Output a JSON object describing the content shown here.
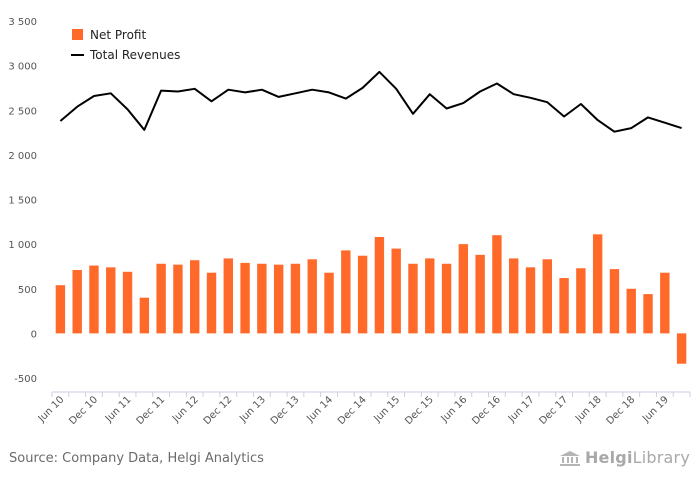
{
  "chart_data": {
    "type": "bar+line",
    "legend": {
      "position": "top-left",
      "items": [
        {
          "name": "Net Profit",
          "color": "#ff6a2b",
          "kind": "bar"
        },
        {
          "name": "Total Revenues",
          "color": "#000000",
          "kind": "line"
        }
      ]
    },
    "grid": false,
    "ylim": [
      -500,
      3500
    ],
    "yticks": [
      -500,
      0,
      500,
      1000,
      1500,
      2000,
      2500,
      3000,
      3500
    ],
    "ytick_labels": [
      "-500",
      "0",
      "500",
      "1 000",
      "1 500",
      "2 000",
      "2 500",
      "3 000",
      "3 500"
    ],
    "xtick_labels": [
      {
        "index": 0,
        "label": "Jun 10"
      },
      {
        "index": 2,
        "label": "Dec 10"
      },
      {
        "index": 4,
        "label": "Jun 11"
      },
      {
        "index": 6,
        "label": "Dec 11"
      },
      {
        "index": 8,
        "label": "Jun 12"
      },
      {
        "index": 10,
        "label": "Dec 12"
      },
      {
        "index": 12,
        "label": "Jun 13"
      },
      {
        "index": 14,
        "label": "Dec 13"
      },
      {
        "index": 16,
        "label": "Jun 14"
      },
      {
        "index": 18,
        "label": "Dec 14"
      },
      {
        "index": 20,
        "label": "Jun 15"
      },
      {
        "index": 22,
        "label": "Dec 15"
      },
      {
        "index": 24,
        "label": "Jun 16"
      },
      {
        "index": 26,
        "label": "Dec 16"
      },
      {
        "index": 28,
        "label": "Jun 17"
      },
      {
        "index": 30,
        "label": "Dec 17"
      },
      {
        "index": 32,
        "label": "Jun 18"
      },
      {
        "index": 34,
        "label": "Dec 18"
      },
      {
        "index": 36,
        "label": "Jun 19"
      }
    ],
    "series": [
      {
        "name": "Net Profit",
        "type": "bar",
        "values": [
          540,
          710,
          760,
          740,
          690,
          400,
          780,
          770,
          820,
          680,
          840,
          790,
          780,
          770,
          780,
          830,
          680,
          930,
          870,
          1080,
          950,
          780,
          840,
          780,
          1000,
          880,
          1100,
          840,
          740,
          830,
          620,
          730,
          1110,
          720,
          500,
          440,
          680,
          -340
        ]
      },
      {
        "name": "Total Revenues",
        "type": "line",
        "values": [
          2380,
          2540,
          2660,
          2690,
          2510,
          2280,
          2720,
          2710,
          2740,
          2600,
          2730,
          2700,
          2730,
          2650,
          2690,
          2730,
          2700,
          2630,
          2750,
          2930,
          2740,
          2460,
          2680,
          2520,
          2580,
          2710,
          2800,
          2680,
          2640,
          2590,
          2430,
          2570,
          2390,
          2260,
          2300,
          2420,
          2360,
          2300
        ]
      }
    ]
  },
  "footer": {
    "source": "Source: Company Data, Helgi Analytics",
    "brand_helgi": "Helgi",
    "brand_library": "Library"
  }
}
